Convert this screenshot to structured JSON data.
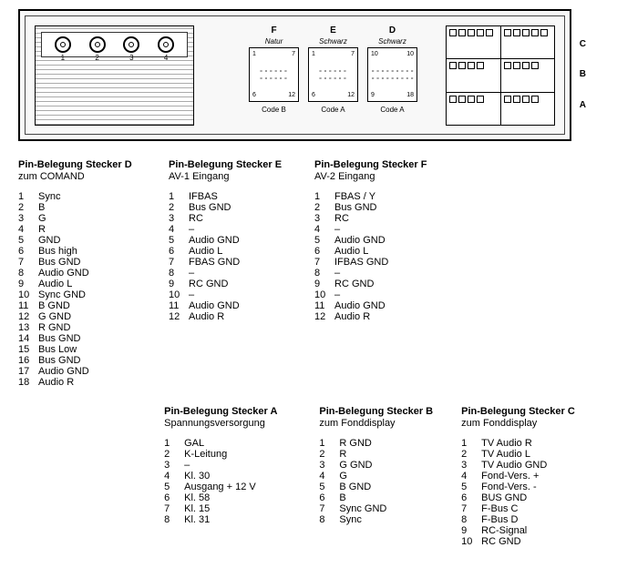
{
  "unit": {
    "rca_labels": [
      "1",
      "2",
      "3",
      "4"
    ],
    "top_letters": [
      "F",
      "E",
      "D"
    ],
    "mid_connectors": [
      {
        "id": "conn-f",
        "name": "Natur",
        "tl": "1",
        "tr": "7",
        "bl": "6",
        "br": "12",
        "code": "Code B"
      },
      {
        "id": "conn-e",
        "name": "Schwarz",
        "tl": "1",
        "tr": "7",
        "bl": "6",
        "br": "12",
        "code": "Code A"
      },
      {
        "id": "conn-d",
        "name": "Schwarz",
        "tl": "10",
        "tr": "10",
        "bl": "9",
        "br": "18",
        "code": "Code A"
      }
    ],
    "side_letters": [
      "C",
      "B",
      "A"
    ]
  },
  "connectors": {
    "D": {
      "title": "Pin-Belegung Stecker D",
      "sub": "zum COMAND",
      "pins": [
        [
          "1",
          "Sync"
        ],
        [
          "2",
          "B"
        ],
        [
          "3",
          "G"
        ],
        [
          "4",
          "R"
        ],
        [
          "5",
          "GND"
        ],
        [
          "6",
          "Bus high"
        ],
        [
          "7",
          "Bus GND"
        ],
        [
          "8",
          "Audio GND"
        ],
        [
          "9",
          "Audio L"
        ],
        [
          "10",
          "Sync GND"
        ],
        [
          "11",
          "B GND"
        ],
        [
          "12",
          "G GND"
        ],
        [
          "13",
          "R GND"
        ],
        [
          "14",
          "Bus GND"
        ],
        [
          "15",
          "Bus Low"
        ],
        [
          "16",
          "Bus GND"
        ],
        [
          "17",
          "Audio GND"
        ],
        [
          "18",
          "Audio R"
        ]
      ]
    },
    "E": {
      "title": "Pin-Belegung Stecker E",
      "sub": "AV-1 Eingang",
      "pins": [
        [
          "1",
          "IFBAS"
        ],
        [
          "2",
          "Bus GND"
        ],
        [
          "3",
          "RC"
        ],
        [
          "4",
          "–"
        ],
        [
          "5",
          "Audio GND"
        ],
        [
          "6",
          "Audio L"
        ],
        [
          "7",
          "FBAS GND"
        ],
        [
          "8",
          "–"
        ],
        [
          "9",
          "RC GND"
        ],
        [
          "10",
          "–"
        ],
        [
          "11",
          "Audio GND"
        ],
        [
          "12",
          "Audio R"
        ]
      ]
    },
    "F": {
      "title": "Pin-Belegung Stecker F",
      "sub": "AV-2 Eingang",
      "pins": [
        [
          "1",
          "FBAS / Y"
        ],
        [
          "2",
          "Bus GND"
        ],
        [
          "3",
          "RC"
        ],
        [
          "4",
          "–"
        ],
        [
          "5",
          "Audio GND"
        ],
        [
          "6",
          "Audio L"
        ],
        [
          "7",
          "IFBAS GND"
        ],
        [
          "8",
          "–"
        ],
        [
          "9",
          "RC GND"
        ],
        [
          "10",
          "–"
        ],
        [
          "11",
          "Audio GND"
        ],
        [
          "12",
          "Audio R"
        ]
      ]
    },
    "A": {
      "title": "Pin-Belegung Stecker A",
      "sub": "Spannungsversorgung",
      "pins": [
        [
          "1",
          "GAL"
        ],
        [
          "2",
          "K-Leitung"
        ],
        [
          "3",
          "–"
        ],
        [
          "4",
          "Kl. 30"
        ],
        [
          "5",
          "Ausgang + 12 V"
        ],
        [
          "6",
          "Kl. 58"
        ],
        [
          "7",
          "Kl. 15"
        ],
        [
          "8",
          "Kl. 31"
        ]
      ]
    },
    "B": {
      "title": "Pin-Belegung Stecker B",
      "sub": "zum Fonddisplay",
      "pins": [
        [
          "1",
          "R GND"
        ],
        [
          "2",
          "R"
        ],
        [
          "3",
          "G GND"
        ],
        [
          "4",
          "G"
        ],
        [
          "5",
          "B GND"
        ],
        [
          "6",
          "B"
        ],
        [
          "7",
          "Sync GND"
        ],
        [
          "8",
          "Sync"
        ]
      ]
    },
    "C": {
      "title": "Pin-Belegung Stecker C",
      "sub": "zum Fonddisplay",
      "pins": [
        [
          "1",
          "TV Audio R"
        ],
        [
          "2",
          "TV Audio L"
        ],
        [
          "3",
          "TV Audio GND"
        ],
        [
          "4",
          "Fond-Vers. +"
        ],
        [
          "5",
          "Fond-Vers. -"
        ],
        [
          "6",
          "BUS GND"
        ],
        [
          "7",
          "F-Bus C"
        ],
        [
          "8",
          "F-Bus D"
        ],
        [
          "9",
          "RC-Signal"
        ],
        [
          "10",
          "RC GND"
        ]
      ]
    }
  }
}
